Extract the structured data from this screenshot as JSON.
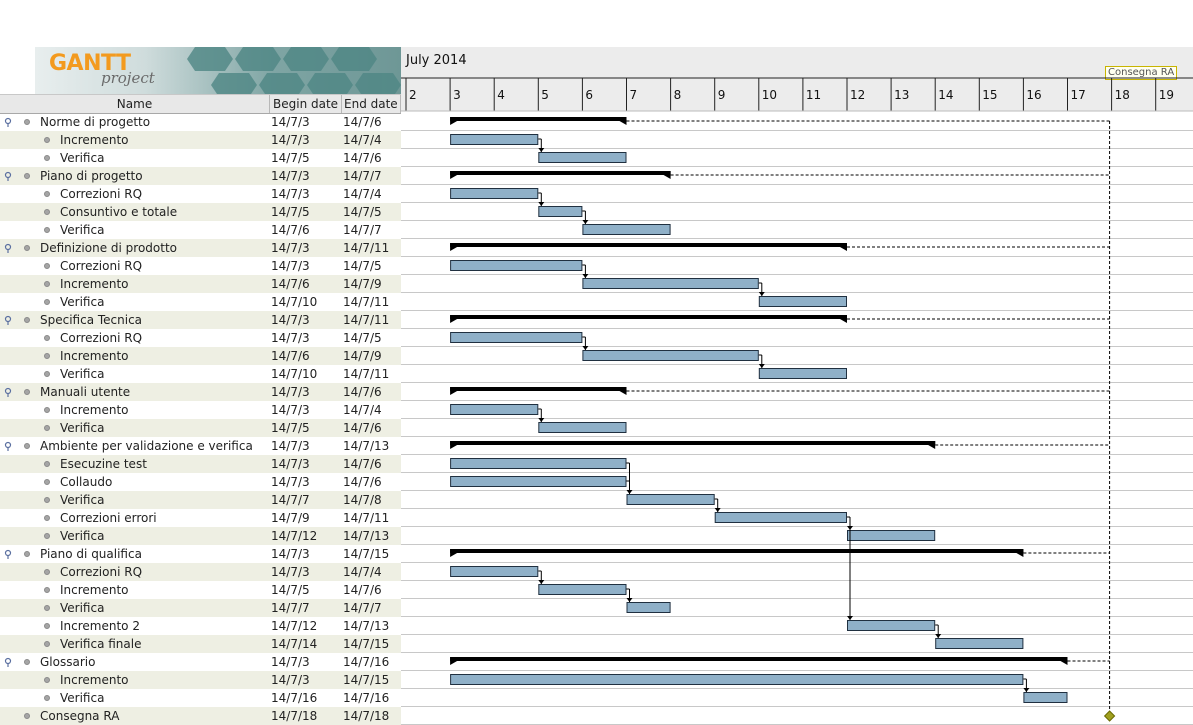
{
  "logo": {
    "brand": "GANTT",
    "sub": "project"
  },
  "table": {
    "col_name": "Name",
    "col_begin": "Begin date",
    "col_end": "End date"
  },
  "timeline": {
    "month": "July 2014",
    "days": [
      "2",
      "3",
      "4",
      "5",
      "6",
      "7",
      "8",
      "9",
      "10",
      "11",
      "12",
      "13",
      "14",
      "15",
      "16",
      "17",
      "18",
      "19"
    ]
  },
  "milestone_label": "Consegna RA",
  "tasks": [
    {
      "name": "Norme di progetto",
      "begin": "14/7/3",
      "end": "14/7/6",
      "level": 0
    },
    {
      "name": "Incremento",
      "begin": "14/7/3",
      "end": "14/7/4",
      "level": 1
    },
    {
      "name": "Verifica",
      "begin": "14/7/5",
      "end": "14/7/6",
      "level": 1
    },
    {
      "name": "Piano di progetto",
      "begin": "14/7/3",
      "end": "14/7/7",
      "level": 0
    },
    {
      "name": "Correzioni RQ",
      "begin": "14/7/3",
      "end": "14/7/4",
      "level": 1
    },
    {
      "name": "Consuntivo e totale",
      "begin": "14/7/5",
      "end": "14/7/5",
      "level": 1
    },
    {
      "name": "Verifica",
      "begin": "14/7/6",
      "end": "14/7/7",
      "level": 1
    },
    {
      "name": "Definizione di prodotto",
      "begin": "14/7/3",
      "end": "14/7/11",
      "level": 0
    },
    {
      "name": "Correzioni RQ",
      "begin": "14/7/3",
      "end": "14/7/5",
      "level": 1
    },
    {
      "name": "Incremento",
      "begin": "14/7/6",
      "end": "14/7/9",
      "level": 1
    },
    {
      "name": "Verifica",
      "begin": "14/7/10",
      "end": "14/7/11",
      "level": 1
    },
    {
      "name": "Specifica Tecnica",
      "begin": "14/7/3",
      "end": "14/7/11",
      "level": 0
    },
    {
      "name": "Correzioni RQ",
      "begin": "14/7/3",
      "end": "14/7/5",
      "level": 1
    },
    {
      "name": "Incremento",
      "begin": "14/7/6",
      "end": "14/7/9",
      "level": 1
    },
    {
      "name": "Verifica",
      "begin": "14/7/10",
      "end": "14/7/11",
      "level": 1
    },
    {
      "name": "Manuali utente",
      "begin": "14/7/3",
      "end": "14/7/6",
      "level": 0
    },
    {
      "name": "Incremento",
      "begin": "14/7/3",
      "end": "14/7/4",
      "level": 1
    },
    {
      "name": "Verifica",
      "begin": "14/7/5",
      "end": "14/7/6",
      "level": 1
    },
    {
      "name": "Ambiente per validazione e verifica",
      "begin": "14/7/3",
      "end": "14/7/13",
      "level": 0
    },
    {
      "name": "Esecuzine test",
      "begin": "14/7/3",
      "end": "14/7/6",
      "level": 1
    },
    {
      "name": "Collaudo",
      "begin": "14/7/3",
      "end": "14/7/6",
      "level": 1
    },
    {
      "name": "Verifica",
      "begin": "14/7/7",
      "end": "14/7/8",
      "level": 1
    },
    {
      "name": "Correzioni errori",
      "begin": "14/7/9",
      "end": "14/7/11",
      "level": 1
    },
    {
      "name": "Verifica",
      "begin": "14/7/12",
      "end": "14/7/13",
      "level": 1
    },
    {
      "name": "Piano di qualifica",
      "begin": "14/7/3",
      "end": "14/7/15",
      "level": 0
    },
    {
      "name": "Correzioni RQ",
      "begin": "14/7/3",
      "end": "14/7/4",
      "level": 1
    },
    {
      "name": "Incremento",
      "begin": "14/7/5",
      "end": "14/7/6",
      "level": 1
    },
    {
      "name": "Verifica",
      "begin": "14/7/7",
      "end": "14/7/7",
      "level": 1
    },
    {
      "name": "Incremento 2",
      "begin": "14/7/12",
      "end": "14/7/13",
      "level": 1
    },
    {
      "name": "Verifica finale",
      "begin": "14/7/14",
      "end": "14/7/15",
      "level": 1
    },
    {
      "name": "Glossario",
      "begin": "14/7/3",
      "end": "14/7/16",
      "level": 0
    },
    {
      "name": "Incremento",
      "begin": "14/7/3",
      "end": "14/7/15",
      "level": 1
    },
    {
      "name": "Verifica",
      "begin": "14/7/16",
      "end": "14/7/16",
      "level": 1
    },
    {
      "name": "Consegna RA",
      "begin": "14/7/18",
      "end": "14/7/18",
      "level": -1
    }
  ],
  "colors": {
    "task_bar": "#8fb0c8",
    "summary_bar": "#000000",
    "milestone": "#a0a020",
    "alt_row": "#eeefe3"
  }
}
